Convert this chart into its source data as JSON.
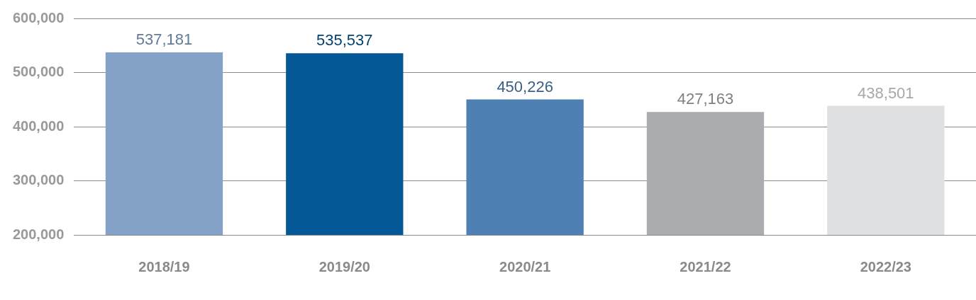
{
  "chart_data": {
    "type": "bar",
    "categories": [
      "2018/19",
      "2019/20",
      "2020/21",
      "2021/22",
      "2022/23"
    ],
    "values": [
      537181,
      535537,
      450226,
      427163,
      438501
    ],
    "colors": [
      "#84a2c8",
      "#035895",
      "#4e80b3",
      "#abacaf",
      "#dfe0e2"
    ],
    "ylim": [
      200000,
      600000
    ],
    "yticks": [
      {
        "value": 200000,
        "label": "200,000"
      },
      {
        "value": 300000,
        "label": "300,000"
      },
      {
        "value": 400000,
        "label": "400,000"
      },
      {
        "value": 500000,
        "label": "500,000"
      },
      {
        "value": 600000,
        "label": "600,000"
      }
    ],
    "grid": "y",
    "legend": false,
    "value_labels": [
      "537,181",
      "535,537",
      "450,226",
      "427,163",
      "438,501"
    ]
  }
}
